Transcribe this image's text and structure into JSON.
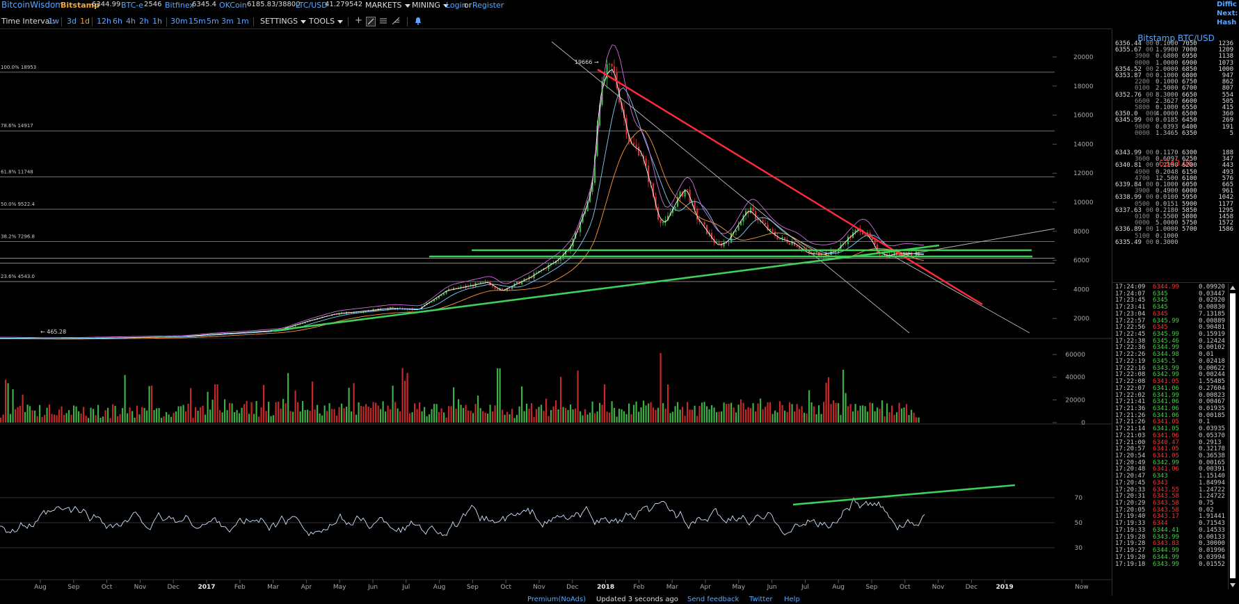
{
  "topbar": {
    "brand": "BitcoinWisdom",
    "markets": [
      {
        "name": "Bitstamp",
        "value": "6344.99"
      },
      {
        "name": "BTC-e",
        "value": "2546"
      },
      {
        "name": "Bitfinex",
        "value": "6345.4"
      },
      {
        "name": "OKCoin",
        "value": "6185.83/38800"
      },
      {
        "name": "LTC/USD",
        "value": "41.279542"
      }
    ],
    "menu_markets": "MARKETS",
    "menu_mining": "MINING",
    "login": "Login",
    "or": "or",
    "register": "Register"
  },
  "side_corner": {
    "line1": "Diffic",
    "line2": "Next:",
    "line3": "Hash R"
  },
  "toolbar": {
    "time_interval_label": "Time Interval:",
    "intervals": [
      "1w",
      "3d",
      "1d",
      "12h",
      "6h",
      "4h",
      "2h",
      "1h",
      "30m",
      "15m",
      "5m",
      "3m",
      "1m"
    ],
    "selected_interval": "1d",
    "settings": "SETTINGS",
    "tools": "TOOLS"
  },
  "chart": {
    "price_axis": [
      "20000",
      "18000",
      "16000",
      "14000",
      "12000",
      "10000",
      "8000",
      "6000",
      "4000",
      "2000"
    ],
    "volume_axis": [
      "60000",
      "40000",
      "20000",
      "0"
    ],
    "rsi_axis": [
      "70",
      "50",
      "30"
    ],
    "time_axis": [
      "Aug",
      "Sep",
      "Oct",
      "Nov",
      "Dec",
      "2017",
      "Feb",
      "Mar",
      "Apr",
      "May",
      "Jun",
      "Jul",
      "Aug",
      "Sep",
      "Oct",
      "Nov",
      "Dec",
      "2018",
      "Feb",
      "Mar",
      "Apr",
      "May",
      "Jun",
      "Jul",
      "Aug",
      "Sep",
      "Oct",
      "Nov",
      "Dec",
      "2019",
      "Now"
    ],
    "fib_levels": [
      {
        "label": "100.0% 18953",
        "price": 18953
      },
      {
        "label": "78.6% 14917",
        "price": 14917
      },
      {
        "label": "61.8% 11748",
        "price": 11748
      },
      {
        "label": "50.0% 9522.4",
        "price": 9522.4
      },
      {
        "label": "38.2% 7296.8",
        "price": 7296.8
      },
      {
        "label": "23.6% 4543.0",
        "price": 4543.0
      }
    ],
    "high_marker": "19666",
    "low_marker": "465.28"
  },
  "orderbook": {
    "title": "Bitstamp BTC/USD",
    "asks": [
      [
        "6356.44",
        "00",
        "0.1000",
        "7050",
        "1236"
      ],
      [
        "6355.67",
        "00",
        "1.9900",
        "7000",
        "1209"
      ],
      [
        "",
        "3900",
        "0.6800",
        "6950",
        "1138"
      ],
      [
        "",
        "0000",
        "1.0000",
        "6900",
        "1073"
      ],
      [
        "6354.52",
        "00",
        "2.0000",
        "6850",
        "1000"
      ],
      [
        "6353.87",
        "00",
        "0.1000",
        "6800",
        "947"
      ],
      [
        "",
        "2200",
        "0.1000",
        "6750",
        "862"
      ],
      [
        "",
        "0100",
        "2.5000",
        "6700",
        "807"
      ],
      [
        "6352.76",
        "00",
        "8.3000",
        "6650",
        "554"
      ],
      [
        "",
        "6600",
        "2.3627",
        "6600",
        "505"
      ],
      [
        "",
        "5800",
        "0.1000",
        "6550",
        "415"
      ],
      [
        "6350.0",
        "000",
        "4.0000",
        "6500",
        "360"
      ],
      [
        "6345.99",
        "00",
        "0.0185",
        "6450",
        "269"
      ],
      [
        "",
        "9800",
        "0.0393",
        "6400",
        "191"
      ],
      [
        "",
        "0000",
        "1.3465",
        "6350",
        "5"
      ]
    ],
    "last_price": "6343.06",
    "bids": [
      [
        "6343.99",
        "00",
        "0.1170",
        "6300",
        "188"
      ],
      [
        "",
        "3600",
        "0.6097",
        "6250",
        "347"
      ],
      [
        "6340.81",
        "00",
        "0.2180",
        "6200",
        "443"
      ],
      [
        "",
        "4900",
        "0.2048",
        "6150",
        "493"
      ],
      [
        "",
        "4700",
        "12.500",
        "6100",
        "576"
      ],
      [
        "6339.84",
        "00",
        "0.1000",
        "6050",
        "665"
      ],
      [
        "",
        "3900",
        "0.4900",
        "6000",
        "961"
      ],
      [
        "6338.99",
        "00",
        "0.0100",
        "5950",
        "1042"
      ],
      [
        "",
        "0500",
        "0.0151",
        "5900",
        "1177"
      ],
      [
        "6337.63",
        "00",
        "0.2180",
        "5850",
        "1295"
      ],
      [
        "",
        "0100",
        "0.5500",
        "5800",
        "1458"
      ],
      [
        "",
        "0000",
        "5.0000",
        "5750",
        "1572"
      ],
      [
        "6336.89",
        "00",
        "1.0000",
        "5700",
        "1586"
      ],
      [
        "",
        "5100",
        "0.1000",
        "",
        ""
      ],
      [
        "6335.49",
        "00",
        "0.3000",
        "",
        ""
      ]
    ]
  },
  "trades": [
    [
      "17:24:09",
      "6344.99",
      "0.09920",
      "r"
    ],
    [
      "17:24:07",
      "6345",
      "0.03447",
      "g"
    ],
    [
      "17:23:45",
      "6345",
      "0.02920",
      "g"
    ],
    [
      "17:23:41",
      "6345",
      "0.00830",
      "g"
    ],
    [
      "17:23:04",
      "6345",
      "7.13185",
      "r"
    ],
    [
      "17:22:57",
      "6345.99",
      "0.00889",
      "g"
    ],
    [
      "17:22:56",
      "6345",
      "0.90481",
      "r"
    ],
    [
      "17:22:45",
      "6345.99",
      "0.15919",
      "g"
    ],
    [
      "17:22:38",
      "6345.46",
      "0.12424",
      "g"
    ],
    [
      "17:22:36",
      "6344.99",
      "0.00102",
      "g"
    ],
    [
      "17:22:26",
      "6344.98",
      "0.01",
      "g"
    ],
    [
      "17:22:19",
      "6345.5",
      "0.02418",
      "g"
    ],
    [
      "17:22:16",
      "6343.99",
      "0.00622",
      "g"
    ],
    [
      "17:22:08",
      "6342.99",
      "0.00244",
      "g"
    ],
    [
      "17:22:08",
      "6341.05",
      "1.55485",
      "r"
    ],
    [
      "17:22:07",
      "6341.06",
      "0.27604",
      "g"
    ],
    [
      "17:22:02",
      "6341.99",
      "0.00823",
      "g"
    ],
    [
      "17:21:41",
      "6341.06",
      "0.00467",
      "g"
    ],
    [
      "17:21:36",
      "6341.06",
      "0.01935",
      "g"
    ],
    [
      "17:21:26",
      "6341.06",
      "0.00185",
      "g"
    ],
    [
      "17:21:26",
      "6341.05",
      "0.1",
      "r"
    ],
    [
      "17:21:14",
      "6341.05",
      "0.03935",
      "g"
    ],
    [
      "17:21:03",
      "6341.06",
      "0.05370",
      "r"
    ],
    [
      "17:21:00",
      "6340.47",
      "0.2913",
      "r"
    ],
    [
      "17:20:57",
      "6341.05",
      "0.32178",
      "r"
    ],
    [
      "17:20:54",
      "6341.05",
      "0.36538",
      "r"
    ],
    [
      "17:20:49",
      "6342.99",
      "0.00165",
      "g"
    ],
    [
      "17:20:48",
      "6341.06",
      "0.00391",
      "r"
    ],
    [
      "17:20:47",
      "6343",
      "1.15140",
      "g"
    ],
    [
      "17:20:45",
      "6343",
      "1.84994",
      "r"
    ],
    [
      "17:20:33",
      "6343.55",
      "1.24722",
      "r"
    ],
    [
      "17:20:31",
      "6343.58",
      "1.24722",
      "r"
    ],
    [
      "17:20:29",
      "6343.58",
      "0.75",
      "r"
    ],
    [
      "17:20:05",
      "6343.58",
      "0.02",
      "r"
    ],
    [
      "17:19:40",
      "6343.17",
      "1.91441",
      "r"
    ],
    [
      "17:19:33",
      "6344",
      "0.71543",
      "r"
    ],
    [
      "17:19:33",
      "6344.41",
      "0.14533",
      "g"
    ],
    [
      "17:19:28",
      "6343.99",
      "0.00133",
      "g"
    ],
    [
      "17:19:28",
      "6343.83",
      "0.30000",
      "r"
    ],
    [
      "17:19:27",
      "6344.99",
      "0.01996",
      "g"
    ],
    [
      "17:19:20",
      "6344.99",
      "0.03994",
      "g"
    ],
    [
      "17:19:18",
      "6343.99",
      "0.01552",
      "g"
    ]
  ],
  "footer": {
    "premium": "Premium(NoAds)",
    "updated": "Updated 3 seconds ago",
    "feedback": "Send feedback",
    "twitter": "Twitter",
    "help": "Help"
  },
  "colors": {
    "background": "#000000",
    "link_blue": "#5aa7ff",
    "market_orange": "#f0a838",
    "up_green": "#40d040",
    "down_red": "#ff3030",
    "trend_red": "#ff2a3a",
    "trend_green": "#3ed15a"
  }
}
